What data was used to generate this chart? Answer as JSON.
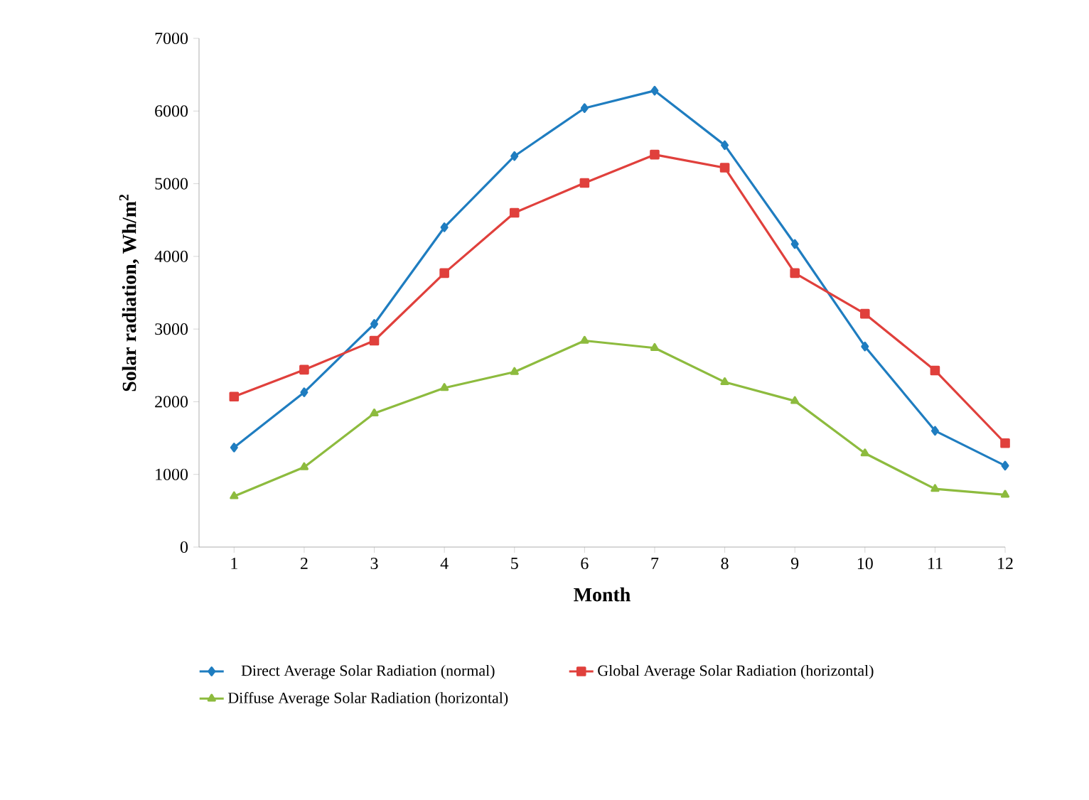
{
  "chart_data": {
    "type": "line",
    "xlabel": "Month",
    "ylabel": "Solar radiation, Wh/m$^{2}$",
    "categories": [
      "1",
      "2",
      "3",
      "4",
      "5",
      "6",
      "7",
      "8",
      "9",
      "10",
      "11",
      "12"
    ],
    "ylim": [
      0,
      7000
    ],
    "yticks": [
      0,
      1000,
      2000,
      3000,
      4000,
      5000,
      6000,
      7000
    ],
    "grid": false,
    "legend": "bottom",
    "line_style": "solid",
    "series": [
      {
        "name": "Direct Average Solar Radiation (normal)",
        "color": "#1f7dc0",
        "marker": "diamond",
        "values": [
          1370,
          2130,
          3070,
          4400,
          5380,
          6040,
          6280,
          5530,
          4170,
          2760,
          1600,
          1120
        ]
      },
      {
        "name": "Global Average Solar Radiation (horizontal)",
        "color": "#e0403c",
        "marker": "square",
        "values": [
          2070,
          2440,
          2840,
          3770,
          4600,
          5010,
          5400,
          5220,
          3770,
          3210,
          2430,
          1430
        ]
      },
      {
        "name": "Diffuse Average Solar Radiation (horizontal)",
        "color": "#8dbb3e",
        "marker": "triangle",
        "values": [
          700,
          1100,
          1840,
          2190,
          2410,
          2840,
          2740,
          2270,
          2010,
          1290,
          800,
          720
        ]
      }
    ]
  }
}
